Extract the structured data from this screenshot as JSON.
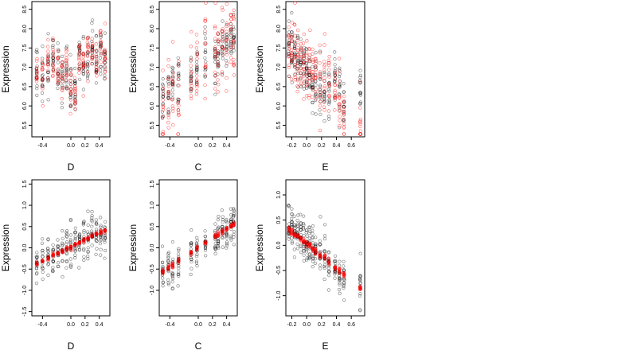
{
  "chart_data": [
    {
      "type": "scatter",
      "xlabel": "D",
      "ylabel": "Expression",
      "xlim": [
        -0.55,
        0.55
      ],
      "ylim": [
        5.2,
        8.7
      ],
      "xticks": [
        -0.4,
        0.0,
        0.2,
        0.4
      ],
      "yticks": [
        5.5,
        6.0,
        6.5,
        7.0,
        7.5,
        8.0,
        8.5
      ],
      "xtick_labels": [
        "-0.4",
        "0.0",
        "0.2",
        "0.4"
      ],
      "ytick_labels": [
        "5.5",
        "6.0",
        "6.5",
        "7.0",
        "7.5",
        "8.0",
        "8.5"
      ],
      "x_levels": [
        -0.48,
        -0.4,
        -0.32,
        -0.25,
        -0.18,
        -0.12,
        -0.06,
        0.0,
        0.06,
        0.12,
        0.18,
        0.24,
        0.3,
        0.36,
        0.42,
        0.48
      ],
      "center": [
        7.0,
        6.8,
        7.1,
        7.2,
        6.9,
        6.7,
        7.0,
        6.4,
        6.3,
        7.2,
        7.1,
        7.3,
        7.4,
        7.2,
        7.5,
        7.2
      ],
      "spread": 0.6,
      "trend": {
        "kind": "none"
      },
      "observed_color": "#000000",
      "fitted_color": "#ff0000",
      "seed": 11
    },
    {
      "type": "scatter",
      "xlabel": "C",
      "ylabel": "Expression",
      "xlim": [
        -0.55,
        0.55
      ],
      "ylim": [
        5.2,
        8.7
      ],
      "xticks": [
        -0.4,
        0.0,
        0.2,
        0.4
      ],
      "yticks": [
        5.5,
        6.0,
        6.5,
        7.0,
        7.5,
        8.0,
        8.5
      ],
      "xtick_labels": [
        "-0.4",
        "0.0",
        "0.2",
        "0.4"
      ],
      "ytick_labels": [
        "5.5",
        "6.0",
        "6.5",
        "7.0",
        "7.5",
        "8.0",
        "8.5"
      ],
      "x_levels": [
        -0.5,
        -0.42,
        -0.36,
        -0.28,
        -0.1,
        -0.02,
        0.1,
        0.24,
        0.28,
        0.34,
        0.4,
        0.46,
        0.5
      ],
      "center": [
        6.2,
        6.3,
        6.6,
        6.6,
        6.8,
        7.0,
        7.2,
        7.0,
        7.3,
        7.4,
        7.6,
        7.8,
        7.7
      ],
      "spread": 0.6,
      "trend": {
        "kind": "linear",
        "intercept": 6.9,
        "slope": 1.6,
        "jitter": 0.55
      },
      "observed_color": "#000000",
      "fitted_color": "#ff0000",
      "seed": 23
    },
    {
      "type": "scatter",
      "xlabel": "E",
      "ylabel": "Expression",
      "xlim": [
        -0.28,
        0.78
      ],
      "ylim": [
        5.2,
        8.7
      ],
      "xticks": [
        -0.2,
        0.0,
        0.2,
        0.4,
        0.6
      ],
      "yticks": [
        5.5,
        6.0,
        6.5,
        7.0,
        7.5,
        8.0,
        8.5
      ],
      "xtick_labels": [
        "-0.2",
        "0.0",
        "0.2",
        "0.4",
        "0.6"
      ],
      "ytick_labels": [
        "5.5",
        "6.0",
        "6.5",
        "7.0",
        "7.5",
        "8.0",
        "8.5"
      ],
      "x_levels": [
        -0.24,
        -0.2,
        -0.16,
        -0.12,
        -0.08,
        -0.04,
        0.0,
        0.04,
        0.08,
        0.12,
        0.18,
        0.24,
        0.3,
        0.38,
        0.44,
        0.5,
        0.72
      ],
      "center": [
        7.6,
        7.5,
        7.4,
        7.3,
        7.1,
        7.0,
        6.8,
        6.8,
        6.7,
        6.6,
        6.5,
        6.4,
        6.3,
        6.8,
        6.5,
        6.0,
        6.3
      ],
      "spread": 0.6,
      "trend": {
        "kind": "linear",
        "intercept": 7.0,
        "slope": -2.0,
        "jitter": 0.45
      },
      "observed_color": "#000000",
      "fitted_color": "#ff0000",
      "seed": 37
    },
    {
      "type": "scatter",
      "xlabel": "D",
      "ylabel": "Expression",
      "xlim": [
        -0.55,
        0.55
      ],
      "ylim": [
        -1.6,
        1.6
      ],
      "xticks": [
        -0.4,
        0.0,
        0.2,
        0.4
      ],
      "yticks": [
        -1.5,
        -1.0,
        -0.5,
        0.0,
        0.5,
        1.0,
        1.5
      ],
      "xtick_labels": [
        "-0.4",
        "0.0",
        "0.2",
        "0.4"
      ],
      "ytick_labels": [
        "-1.5",
        "-1.0",
        "-0.5",
        "0.0",
        "0.5",
        "1.0",
        "1.5"
      ],
      "x_levels": [
        -0.48,
        -0.4,
        -0.32,
        -0.25,
        -0.18,
        -0.12,
        -0.06,
        0.0,
        0.06,
        0.12,
        0.18,
        0.24,
        0.3,
        0.36,
        0.42,
        0.48
      ],
      "center": [
        -0.35,
        -0.3,
        -0.2,
        -0.15,
        -0.1,
        -0.05,
        0.0,
        0.05,
        0.1,
        0.15,
        0.2,
        0.25,
        0.3,
        0.32,
        0.35,
        0.4
      ],
      "spread": 0.45,
      "trend": {
        "kind": "linear",
        "intercept": 0.02,
        "slope": 0.82,
        "jitter": 0.02
      },
      "observed_color": "#000000",
      "fitted_color": "#ff0000",
      "seed": 51
    },
    {
      "type": "scatter",
      "xlabel": "C",
      "ylabel": "Expression",
      "xlim": [
        -0.55,
        0.55
      ],
      "ylim": [
        -1.6,
        1.6
      ],
      "xticks": [
        -0.4,
        0.0,
        0.2,
        0.4
      ],
      "yticks": [
        -1.0,
        -0.5,
        0.0,
        0.5,
        1.0,
        1.5
      ],
      "xtick_labels": [
        "-0.4",
        "0.0",
        "0.2",
        "0.4"
      ],
      "ytick_labels": [
        "-1.0",
        "-0.5",
        "0.0",
        "0.5",
        "1.0",
        "1.5"
      ],
      "x_levels": [
        -0.5,
        -0.42,
        -0.36,
        -0.28,
        -0.1,
        -0.02,
        0.1,
        0.24,
        0.28,
        0.34,
        0.4,
        0.46,
        0.5
      ],
      "center": [
        -0.6,
        -0.5,
        -0.4,
        -0.35,
        -0.1,
        0.0,
        0.1,
        0.25,
        0.3,
        0.4,
        0.45,
        0.5,
        0.55
      ],
      "spread": 0.45,
      "trend": {
        "kind": "linear",
        "intercept": 0.0,
        "slope": 1.1,
        "jitter": 0.03
      },
      "observed_color": "#000000",
      "fitted_color": "#ff0000",
      "seed": 63
    },
    {
      "type": "scatter",
      "xlabel": "E",
      "ylabel": "Expression",
      "xlim": [
        -0.28,
        0.78
      ],
      "ylim": [
        -1.4,
        1.3
      ],
      "xticks": [
        -0.2,
        0.0,
        0.2,
        0.4,
        0.6
      ],
      "yticks": [
        -1.0,
        -0.5,
        0.0,
        0.5,
        1.0
      ],
      "xtick_labels": [
        "-0.2",
        "0.0",
        "0.2",
        "0.4",
        "0.6"
      ],
      "ytick_labels": [
        "-1.0",
        "-0.5",
        "0.0",
        "0.5",
        "1.0"
      ],
      "x_levels": [
        -0.24,
        -0.2,
        -0.16,
        -0.12,
        -0.08,
        -0.04,
        0.0,
        0.04,
        0.08,
        0.12,
        0.18,
        0.24,
        0.3,
        0.38,
        0.44,
        0.5,
        0.72
      ],
      "center": [
        0.4,
        0.35,
        0.3,
        0.25,
        0.2,
        0.1,
        0.05,
        0.0,
        -0.05,
        -0.1,
        -0.2,
        -0.25,
        -0.35,
        -0.45,
        -0.5,
        -0.55,
        -0.7
      ],
      "spread": 0.4,
      "trend": {
        "kind": "linear",
        "intercept": 0.03,
        "slope": -1.22,
        "jitter": 0.03
      },
      "observed_color": "#000000",
      "fitted_color": "#ff0000",
      "seed": 77
    }
  ]
}
